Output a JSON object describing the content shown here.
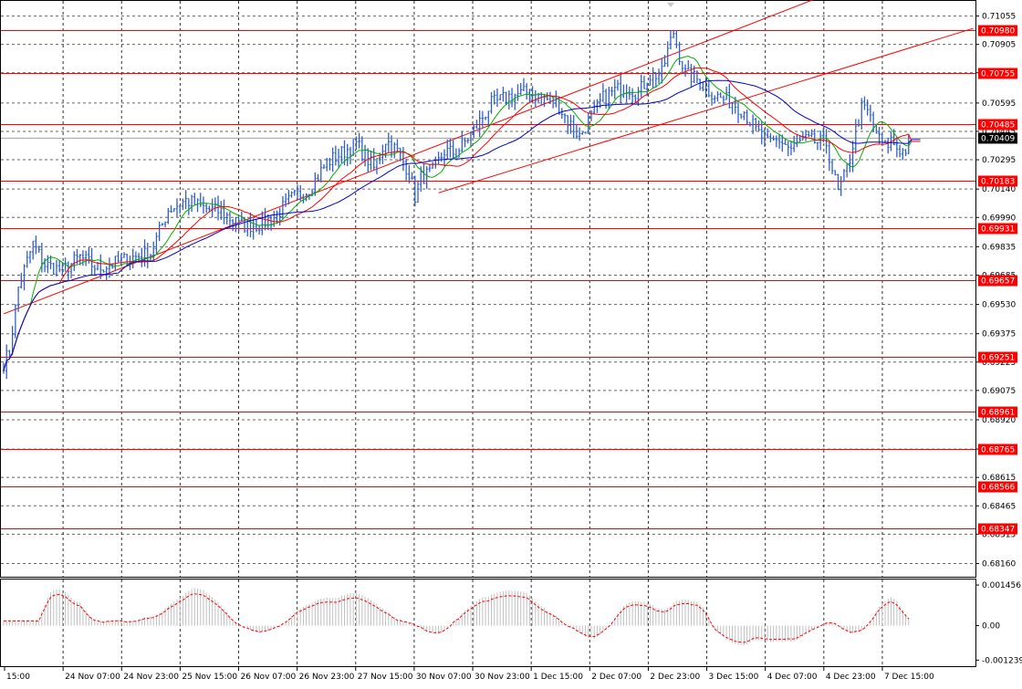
{
  "chart_data": {
    "type": "line",
    "title": "",
    "instrument_style": "forex bar chart with moving averages, channel lines, horizontal levels and oscillator",
    "y_range": [
      0.68085,
      0.71135
    ],
    "y_ticks": [
      "0.71055",
      "0.70905",
      "0.70755",
      "0.70595",
      "0.70445",
      "0.70295",
      "0.70140",
      "0.69990",
      "0.69835",
      "0.69685",
      "0.69530",
      "0.69375",
      "0.69225",
      "0.69075",
      "0.68920",
      "0.68765",
      "0.68615",
      "0.68465",
      "0.68315",
      "0.68160"
    ],
    "x_labels": [
      "15:00",
      "24 Nov 07:00",
      "24 Nov 23:00",
      "25 Nov 15:00",
      "26 Nov 07:00",
      "26 Nov 23:00",
      "27 Nov 15:00",
      "30 Nov 07:00",
      "30 Nov 23:00",
      "1 Dec 15:00",
      "2 Dec 07:00",
      "2 Dec 23:00",
      "3 Dec 15:00",
      "4 Dec 07:00",
      "4 Dec 23:00",
      "7 Dec 15:00"
    ],
    "levels": [
      "0.70980",
      "0.70755",
      "0.70485",
      "0.70183",
      "0.69931",
      "0.69657",
      "0.69251",
      "0.68961",
      "0.68765",
      "0.68566",
      "0.68347"
    ],
    "current_price": "0.70409",
    "price_series_anchors": [
      [
        0,
        0.6922
      ],
      [
        2,
        0.6928
      ],
      [
        5,
        0.6962
      ],
      [
        10,
        0.6985
      ],
      [
        14,
        0.6974
      ],
      [
        20,
        0.6971
      ],
      [
        26,
        0.6978
      ],
      [
        32,
        0.6972
      ],
      [
        38,
        0.6975
      ],
      [
        44,
        0.6978
      ],
      [
        50,
        0.698
      ],
      [
        56,
        0.7003
      ],
      [
        62,
        0.7008
      ],
      [
        68,
        0.7004
      ],
      [
        74,
        0.7002
      ],
      [
        80,
        0.6995
      ],
      [
        86,
        0.6995
      ],
      [
        92,
        0.6999
      ],
      [
        98,
        0.7009
      ],
      [
        104,
        0.7014
      ],
      [
        110,
        0.7028
      ],
      [
        116,
        0.7034
      ],
      [
        120,
        0.7038
      ],
      [
        126,
        0.7025
      ],
      [
        130,
        0.704
      ],
      [
        134,
        0.7034
      ],
      [
        138,
        0.7023
      ],
      [
        140,
        0.701
      ],
      [
        142,
        0.702
      ],
      [
        146,
        0.7023
      ],
      [
        150,
        0.7034
      ],
      [
        154,
        0.7033
      ],
      [
        160,
        0.7045
      ],
      [
        166,
        0.7059
      ],
      [
        172,
        0.7063
      ],
      [
        178,
        0.7065
      ],
      [
        184,
        0.7062
      ],
      [
        188,
        0.706
      ],
      [
        192,
        0.705
      ],
      [
        196,
        0.7042
      ],
      [
        200,
        0.7052
      ],
      [
        204,
        0.7062
      ],
      [
        208,
        0.7066
      ],
      [
        212,
        0.7068
      ],
      [
        216,
        0.7065
      ],
      [
        220,
        0.7074
      ],
      [
        224,
        0.7075
      ],
      [
        226,
        0.7087
      ],
      [
        228,
        0.7097
      ],
      [
        230,
        0.7085
      ],
      [
        232,
        0.7075
      ],
      [
        236,
        0.7072
      ],
      [
        240,
        0.7066
      ],
      [
        244,
        0.7062
      ],
      [
        248,
        0.706
      ],
      [
        252,
        0.7055
      ],
      [
        256,
        0.7045
      ],
      [
        260,
        0.7038
      ],
      [
        264,
        0.704
      ],
      [
        268,
        0.7035
      ],
      [
        272,
        0.704
      ],
      [
        276,
        0.7039
      ],
      [
        280,
        0.7038
      ],
      [
        282,
        0.7025
      ],
      [
        284,
        0.7012
      ],
      [
        286,
        0.702
      ],
      [
        288,
        0.703
      ],
      [
        290,
        0.7045
      ],
      [
        292,
        0.7057
      ],
      [
        294,
        0.7055
      ],
      [
        296,
        0.7048
      ],
      [
        298,
        0.704
      ],
      [
        300,
        0.7036
      ],
      [
        302,
        0.704
      ],
      [
        304,
        0.7036
      ],
      [
        306,
        0.7034
      ],
      [
        308,
        0.7036
      ]
    ],
    "channel_lines": [
      {
        "color": "#ff0000",
        "from": [
          0,
          0.6948
        ],
        "to": [
          330,
          0.7147
        ]
      },
      {
        "color": "#ff0000",
        "from": [
          148,
          0.7012
        ],
        "to": [
          330,
          0.7099
        ]
      }
    ],
    "moving_averages": [
      {
        "color": "#00b000",
        "period": 10
      },
      {
        "color": "#ff0000",
        "period": 20
      },
      {
        "color": "#0000cc",
        "period": 40
      }
    ],
    "oscillator": {
      "ticks": [
        "0.001456",
        "0.00",
        "-0.001239"
      ],
      "range": [
        -0.00145,
        0.00165
      ]
    },
    "colors": {
      "bars": "#3060c8",
      "levels": "#ff0000",
      "grid": "#000000",
      "osc_hist": "#c0c0c0",
      "osc_signal": "#ff0000",
      "current_badge": "#000000"
    }
  }
}
